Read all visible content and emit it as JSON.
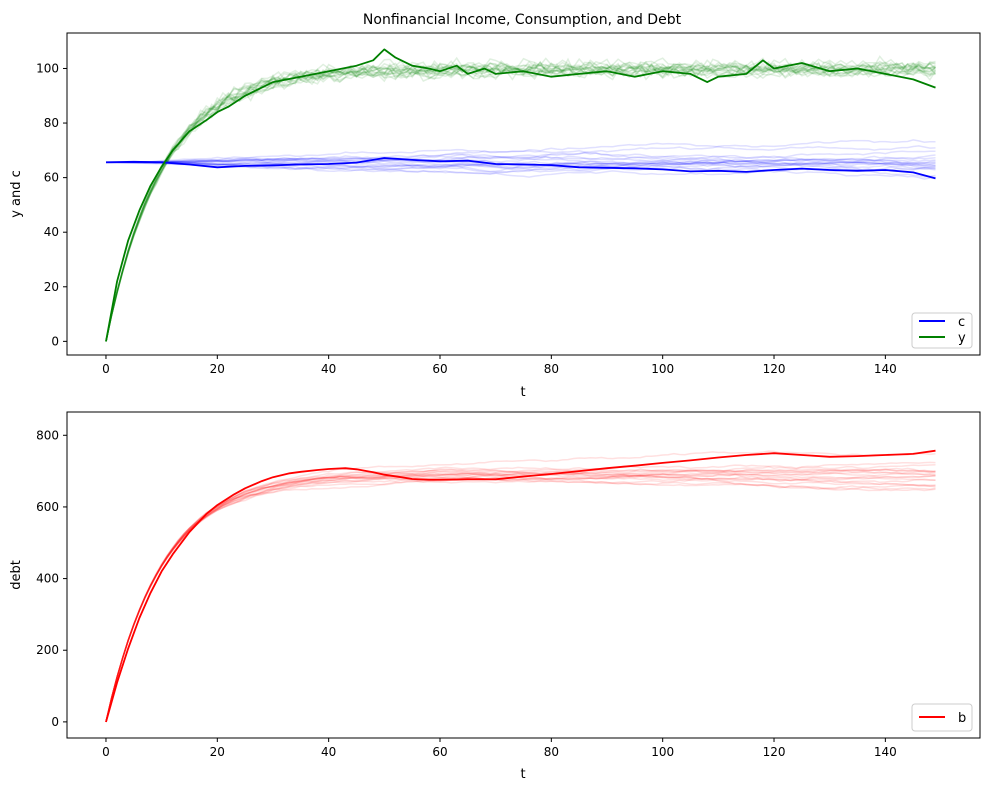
{
  "chart_data": [
    {
      "type": "line",
      "title": "Nonfinancial Income, Consumption, and Debt",
      "xlabel": "t",
      "ylabel": "y and c",
      "xlim": [
        -7,
        157
      ],
      "ylim": [
        -5,
        113
      ],
      "xticks": [
        0,
        20,
        40,
        60,
        80,
        100,
        120,
        140
      ],
      "yticks": [
        0,
        20,
        40,
        60,
        80,
        100
      ],
      "grid": false,
      "legend_position": "lower-right",
      "series": [
        {
          "name": "c",
          "color": "#0000ff",
          "x": [
            0,
            5,
            10,
            15,
            20,
            25,
            30,
            35,
            40,
            45,
            50,
            55,
            60,
            65,
            70,
            75,
            80,
            85,
            90,
            95,
            100,
            105,
            110,
            115,
            120,
            125,
            130,
            135,
            140,
            145,
            149
          ],
          "values": [
            65.6,
            65.8,
            65.6,
            64.8,
            63.8,
            64.3,
            64.5,
            64.8,
            65.0,
            65.5,
            67.2,
            66.5,
            66.0,
            66.2,
            65.0,
            64.8,
            64.6,
            63.8,
            63.6,
            63.4,
            63.0,
            62.3,
            62.5,
            62.1,
            62.8,
            63.3,
            62.8,
            62.5,
            62.8,
            61.9,
            59.7
          ]
        },
        {
          "name": "y",
          "color": "#008000",
          "x": [
            0,
            2,
            4,
            6,
            8,
            10,
            12,
            15,
            18,
            20,
            22,
            25,
            28,
            30,
            35,
            40,
            45,
            48,
            50,
            52,
            55,
            58,
            60,
            63,
            65,
            68,
            70,
            75,
            80,
            85,
            90,
            95,
            100,
            105,
            108,
            110,
            115,
            118,
            120,
            125,
            130,
            135,
            140,
            145,
            149
          ],
          "values": [
            0,
            22,
            37,
            48,
            57,
            64,
            70,
            77,
            81,
            84,
            86,
            90,
            93,
            95,
            97,
            99,
            101,
            103,
            107,
            104,
            101,
            100,
            99,
            101,
            98,
            100,
            98,
            99,
            97,
            98,
            99,
            97,
            99,
            98,
            95,
            97,
            98,
            103,
            100,
            102,
            99,
            100,
            98,
            96,
            93
          ]
        }
      ],
      "background_runs": {
        "color_c": "#0000ff",
        "color_y": "#008000"
      }
    },
    {
      "type": "line",
      "title": "",
      "xlabel": "t",
      "ylabel": "debt",
      "xlim": [
        -7,
        157
      ],
      "ylim": [
        -45,
        865
      ],
      "xticks": [
        0,
        20,
        40,
        60,
        80,
        100,
        120,
        140
      ],
      "yticks": [
        0,
        200,
        400,
        600,
        800
      ],
      "grid": false,
      "legend_position": "lower-right",
      "series": [
        {
          "name": "b",
          "color": "#ff0000",
          "x": [
            0,
            2,
            4,
            6,
            8,
            10,
            12,
            15,
            18,
            20,
            23,
            25,
            28,
            30,
            33,
            35,
            38,
            40,
            43,
            45,
            48,
            50,
            53,
            55,
            58,
            60,
            65,
            70,
            75,
            80,
            85,
            90,
            95,
            100,
            105,
            110,
            115,
            120,
            125,
            130,
            135,
            140,
            145,
            149
          ],
          "values": [
            0,
            110,
            205,
            290,
            360,
            420,
            468,
            530,
            580,
            605,
            635,
            652,
            672,
            683,
            694,
            698,
            703,
            706,
            708,
            705,
            697,
            690,
            683,
            678,
            676,
            676,
            677,
            677,
            685,
            692,
            700,
            708,
            715,
            723,
            730,
            738,
            745,
            750,
            745,
            740,
            742,
            745,
            748,
            757
          ]
        }
      ],
      "background_runs": {
        "color_b": "#ff0000"
      }
    }
  ]
}
